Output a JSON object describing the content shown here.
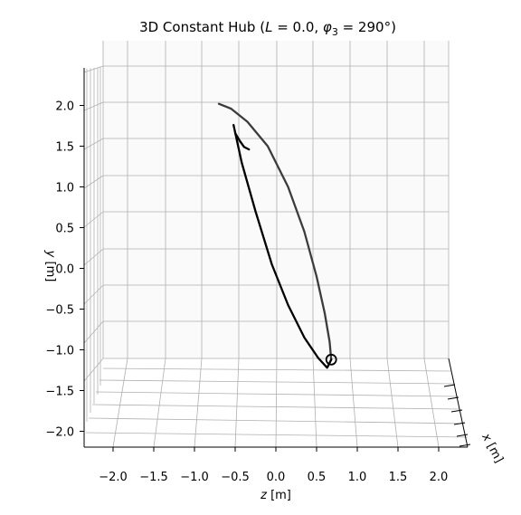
{
  "chart_data": {
    "type": "line",
    "projection": "3d",
    "title": "3D Constant Hub (L = 0.0, φ3 = 290°)",
    "title_parts": {
      "prefix": "3D Constant Hub (",
      "var1": "L",
      "eq1": " = 0.0, ",
      "var2": "φ",
      "var2_sub": "3",
      "eq2": " = 290°)"
    },
    "xlabel": "z [m]",
    "ylabel": "y [m]",
    "zlabel": "x [m]",
    "xlabel_parts": {
      "var": "z",
      "unit": " [m]"
    },
    "ylabel_parts": {
      "var": "y",
      "unit": " [m]"
    },
    "zlabel_parts": {
      "var": "x",
      "unit": " [m]"
    },
    "xlim": [
      -2.3,
      2.3
    ],
    "ylim": [
      -2.2,
      2.4
    ],
    "x_ticks": [
      -2.0,
      -1.5,
      -1.0,
      -0.5,
      0.0,
      0.5,
      1.0,
      1.5,
      2.0
    ],
    "x_tick_labels": [
      "−2.0",
      "−1.5",
      "−1.0",
      "−0.5",
      "0.0",
      "0.5",
      "1.0",
      "1.5",
      "2.0"
    ],
    "y_ticks": [
      -2.0,
      -1.5,
      -1.0,
      -0.5,
      0.0,
      0.5,
      1.0,
      1.5,
      2.0
    ],
    "y_tick_labels": [
      "−2.0",
      "−1.5",
      "−1.0",
      "−0.5",
      "0.0",
      "0.5",
      "1.0",
      "1.5",
      "2.0"
    ],
    "grid": true,
    "series": [
      {
        "color": "#3c3c3c",
        "points": [
          [
            -0.7,
            2.02
          ],
          [
            -0.55,
            1.96
          ],
          [
            -0.35,
            1.8
          ],
          [
            -0.1,
            1.5
          ],
          [
            0.15,
            1.0
          ],
          [
            0.35,
            0.45
          ],
          [
            0.5,
            -0.1
          ],
          [
            0.6,
            -0.55
          ],
          [
            0.66,
            -0.9
          ],
          [
            0.68,
            -1.12
          ]
        ]
      },
      {
        "color": "#000000",
        "points": [
          [
            -0.52,
            1.76
          ],
          [
            -0.42,
            1.3
          ],
          [
            -0.25,
            0.7
          ],
          [
            -0.05,
            0.05
          ],
          [
            0.15,
            -0.45
          ],
          [
            0.35,
            -0.85
          ],
          [
            0.52,
            -1.1
          ],
          [
            0.63,
            -1.22
          ],
          [
            0.68,
            -1.12
          ]
        ]
      },
      {
        "color": "#000000",
        "points": [
          [
            -0.5,
            1.66
          ],
          [
            -0.44,
            1.56
          ],
          [
            -0.39,
            1.49
          ],
          [
            -0.33,
            1.46
          ]
        ]
      }
    ],
    "marker": {
      "x": 0.68,
      "y": -1.12,
      "shape": "open-circle",
      "color": "#000000"
    }
  }
}
